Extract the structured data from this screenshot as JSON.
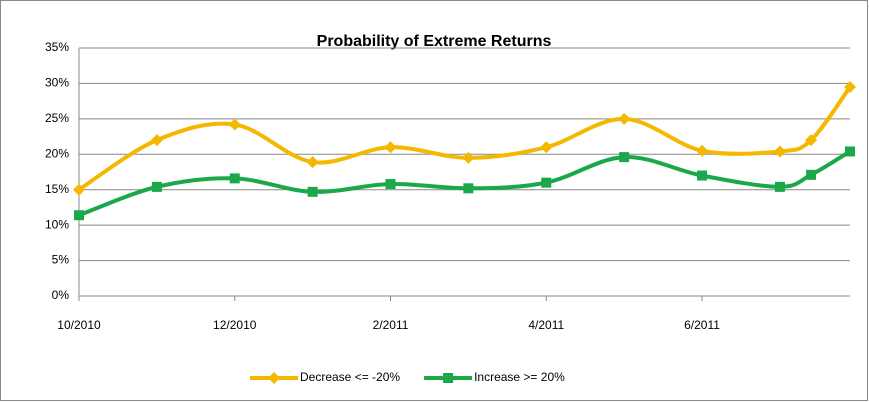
{
  "chart_data": {
    "type": "line",
    "title": "Probability of Extreme Returns",
    "x": [
      0,
      1,
      2,
      3,
      4,
      5,
      6,
      7,
      8,
      9,
      9.4,
      9.9
    ],
    "xlim": [
      0,
      9.9
    ],
    "xticks": [
      {
        "value": 0,
        "label": "10/2010"
      },
      {
        "value": 2,
        "label": "12/2010"
      },
      {
        "value": 4,
        "label": "2/2011"
      },
      {
        "value": 6,
        "label": "4/2011"
      },
      {
        "value": 8,
        "label": "6/2011"
      }
    ],
    "ylim": [
      0,
      35
    ],
    "yticks": [
      {
        "value": 0,
        "label": "0%"
      },
      {
        "value": 5,
        "label": "5%"
      },
      {
        "value": 10,
        "label": "10%"
      },
      {
        "value": 15,
        "label": "15%"
      },
      {
        "value": 20,
        "label": "20%"
      },
      {
        "value": 25,
        "label": "25%"
      },
      {
        "value": 30,
        "label": "30%"
      },
      {
        "value": 35,
        "label": "35%"
      }
    ],
    "grid": true,
    "legend": "bottom",
    "series": [
      {
        "name": "Decrease <= -20%",
        "color": "#f5b800",
        "marker": "diamond",
        "values": [
          15,
          22,
          24.2,
          18.9,
          21,
          19.5,
          21,
          25,
          20.5,
          20.4,
          22,
          29.5
        ]
      },
      {
        "name": "Increase >= 20%",
        "color": "#1aa84a",
        "marker": "square",
        "values": [
          11.4,
          15.4,
          16.6,
          14.7,
          15.8,
          15.2,
          16,
          19.6,
          17,
          15.4,
          17.1,
          20.4
        ]
      }
    ]
  }
}
